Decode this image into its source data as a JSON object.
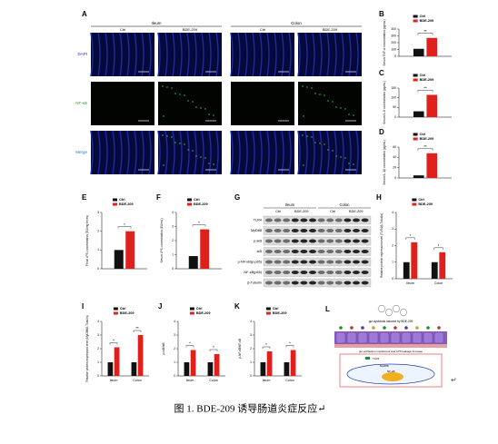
{
  "panel_a": {
    "letter": "A",
    "tissues": [
      "Ileum",
      "Colon"
    ],
    "groups": [
      "Ctrl",
      "BDE-209"
    ],
    "channels": [
      "DAPI",
      "NF-κB",
      "Merge"
    ]
  },
  "chart_data": [
    {
      "type": "bar",
      "panel": "B",
      "ylabel": "Serum TNF-α concentration (pg/mL)",
      "categories": [
        null
      ],
      "series": [
        {
          "name": "Ctrl",
          "color": "#111111",
          "values": [
            110
          ]
        },
        {
          "name": "BDE-209",
          "color": "#e0201c",
          "values": [
            270
          ]
        }
      ],
      "annotations": [
        "**"
      ],
      "ylim": [
        0,
        400
      ],
      "yticks": [
        0,
        100,
        200,
        300,
        400
      ]
    },
    {
      "type": "bar",
      "panel": "C",
      "ylabel": "Serum IL-6 concentration (pg/mL)",
      "categories": [
        null
      ],
      "series": [
        {
          "name": "Ctrl",
          "color": "#111111",
          "values": [
            30
          ]
        },
        {
          "name": "BDE-209",
          "color": "#e0201c",
          "values": [
            115
          ]
        }
      ],
      "annotations": [
        "**"
      ],
      "ylim": [
        0,
        150
      ],
      "yticks": [
        0,
        50,
        100,
        150
      ]
    },
    {
      "type": "bar",
      "panel": "D",
      "ylabel": "Serum IL-1β concentration (pg/mL)",
      "categories": [
        null
      ],
      "series": [
        {
          "name": "Ctrl",
          "color": "#111111",
          "values": [
            5
          ]
        },
        {
          "name": "BDE-209",
          "color": "#e0201c",
          "values": [
            48
          ]
        }
      ],
      "annotations": [
        "**"
      ],
      "ylim": [
        0,
        60
      ],
      "yticks": [
        0,
        20,
        40,
        60
      ]
    },
    {
      "type": "bar",
      "panel": "E",
      "ylabel": "Fecal LPS concentration (EU/mg feces)",
      "categories": [
        null
      ],
      "series": [
        {
          "name": "Ctrl",
          "color": "#111111",
          "values": [
            1.0
          ]
        },
        {
          "name": "BDE-209",
          "color": "#e0201c",
          "values": [
            2.0
          ]
        }
      ],
      "annotations": [
        "*"
      ],
      "ylim": [
        0,
        3
      ],
      "yticks": [
        0,
        1,
        2,
        3
      ]
    },
    {
      "type": "bar",
      "panel": "F",
      "ylabel": "Serum LPS concentration (EU/mL)",
      "categories": [
        null
      ],
      "series": [
        {
          "name": "Ctrl",
          "color": "#111111",
          "values": [
            0.9
          ]
        },
        {
          "name": "BDE-209",
          "color": "#e0201c",
          "values": [
            2.8
          ]
        }
      ],
      "annotations": [
        "*"
      ],
      "ylim": [
        0,
        4
      ],
      "yticks": [
        0,
        1,
        2,
        3,
        4
      ]
    },
    {
      "type": "bar",
      "panel": "H",
      "ylabel": "Relative protein expression level (TLR4/β-Tubulin)",
      "categories": [
        "Ileum",
        "Colon"
      ],
      "series": [
        {
          "name": "Ctrl",
          "color": "#111111",
          "values": [
            1.0,
            1.0
          ]
        },
        {
          "name": "BDE-209",
          "color": "#e0201c",
          "values": [
            2.2,
            1.6
          ]
        }
      ],
      "annotations": [
        "*",
        "*"
      ],
      "ylim": [
        0,
        4
      ],
      "yticks": [
        0,
        1,
        2,
        3,
        4
      ]
    },
    {
      "type": "bar",
      "panel": "I",
      "ylabel": "Relative protein expression level (MyD88/β-Tubulin)",
      "categories": [
        "Ileum",
        "Colon"
      ],
      "series": [
        {
          "name": "Ctrl",
          "color": "#111111",
          "values": [
            1.0,
            1.0
          ]
        },
        {
          "name": "BDE-209",
          "color": "#e0201c",
          "values": [
            2.1,
            3.0
          ]
        }
      ],
      "annotations": [
        "*",
        "**"
      ],
      "ylim": [
        0,
        4
      ],
      "yticks": [
        0,
        1,
        2,
        3,
        4
      ]
    },
    {
      "type": "bar",
      "panel": "J",
      "ylabel": "p-IκB/IκB",
      "categories": [
        "Ileum",
        "Colon"
      ],
      "series": [
        {
          "name": "Ctrl",
          "color": "#111111",
          "values": [
            1.0,
            1.0
          ]
        },
        {
          "name": "BDE-209",
          "color": "#e0201c",
          "values": [
            1.9,
            1.6
          ]
        }
      ],
      "annotations": [
        "*",
        "*"
      ],
      "ylim": [
        0,
        4
      ],
      "yticks": [
        0,
        1,
        2,
        3,
        4
      ]
    },
    {
      "type": "bar",
      "panel": "K",
      "ylabel": "p-NF-κB/NF-κB",
      "categories": [
        "Ileum",
        "Colon"
      ],
      "series": [
        {
          "name": "Ctrl",
          "color": "#111111",
          "values": [
            1.0,
            1.0
          ]
        },
        {
          "name": "BDE-209",
          "color": "#e0201c",
          "values": [
            1.8,
            1.9
          ]
        }
      ],
      "annotations": [
        "*",
        "*"
      ],
      "ylim": [
        0,
        4
      ],
      "yticks": [
        0,
        1,
        2,
        3,
        4
      ]
    }
  ],
  "panel_g": {
    "letter": "G",
    "tissues": [
      "Ileum",
      "Colon"
    ],
    "groups": [
      "Ctrl",
      "BDE-209"
    ],
    "proteins": [
      "TLR4",
      "MyD88",
      "p-IκB",
      "IκB",
      "p-NF-κB(p-p65)",
      "NF-κB(p65)",
      "β-Tubulin"
    ]
  },
  "panel_l": {
    "letter": "L",
    "labels": [
      "gut dysbiosis induced by BDE-209",
      "gut epithelium impairment and LPS leakage increase",
      "TLR4",
      "MyD88",
      "NF-κB"
    ]
  },
  "caption": "图 1. BDE-209 诱导肠道炎症反应↵",
  "marks": [
    "↵"
  ]
}
